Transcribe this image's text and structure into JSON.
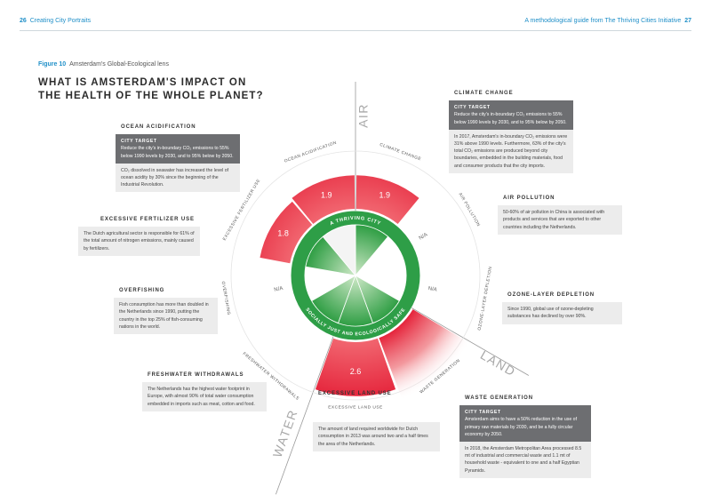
{
  "header": {
    "page_left": "26",
    "section": "Creating City Portraits",
    "guide": "A methodological guide from The Thriving Cities Initiative",
    "page_right": "27"
  },
  "figure": {
    "label": "Figure 10",
    "caption": "Amsterdam's Global-Ecological lens"
  },
  "title": [
    "WHAT IS AMSTERDAM'S IMPACT ON",
    "THE HEALTH OF THE WHOLE PLANET?"
  ],
  "diagram": {
    "ring_top": "A THRIVING CITY",
    "ring_bottom": "SOCIALLY JUST AND ECOLOGICALLY SAFE",
    "axes": [
      "AIR",
      "LAND",
      "WATER"
    ],
    "sectors": [
      {
        "label": "CLIMATE CHANGE",
        "value": 1.9
      },
      {
        "label": "AIR POLLUTION",
        "value_label": "N/A"
      },
      {
        "label": "OZONE-LAYER DEPLETION",
        "value_label": "N/A"
      },
      {
        "label": "WASTE GENERATION"
      },
      {
        "label": "EXCESSIVE LAND USE",
        "value": 2.6
      },
      {
        "label": "FRESHWATER WITHDRAWALS"
      },
      {
        "label": "OVERFISHING",
        "value_label": "N/A"
      },
      {
        "label": "EXCESSIVE FERTILIZER USE",
        "value": 1.8
      },
      {
        "label": "OCEAN ACIDIFICATION",
        "value": 1.9
      }
    ]
  },
  "panels": [
    {
      "title": "CLIMATE CHANGE",
      "target_heading": "CITY TARGET",
      "target": "Reduce the city's in-boundary CO₂ emissions to 55% below 1990 levels by 2030, and to 95% below by 2050.",
      "body": "In 2017, Amsterdam's in-boundary CO₂ emissions were 31% above 1990 levels. Furthermore, 63% of the city's total CO₂ emissions are produced beyond city boundaries, embedded in the building materials, food and consumer products that the city imports."
    },
    {
      "title": "OCEAN ACIDIFICATION",
      "target_heading": "CITY TARGET",
      "target": "Reduce the city's in-boundary CO₂ emissions to 55% below 1990 levels by 2030, and to 95% below by 2050.",
      "body": "CO₂ dissolved in seawater has increased the level of ocean acidity by 30% since the beginning of the Industrial Revolution."
    },
    {
      "title": "AIR POLLUTION",
      "body": "50-60% of air pollution in China is associated with products and services that are exported to other countries including the Netherlands."
    },
    {
      "title": "EXCESSIVE FERTILIZER USE",
      "body": "The Dutch agricultural sector is responsible for 61% of the total amount of nitrogen emissions, mainly caused by fertilizers."
    },
    {
      "title": "OZONE-LAYER DEPLETION",
      "body": "Since 1990, global use of ozone-depleting substances has declined by over 90%."
    },
    {
      "title": "OVERFISHING",
      "body": "Fish consumption has more than doubled in the Netherlands since 1990, putting the country in the top 25% of fish-consuming nations in the world."
    },
    {
      "title": "FRESHWATER WITHDRAWALS",
      "body": "The Netherlands has the highest water footprint in Europe, with almost 90% of total water consumption embedded in imports such as meat, cotton and food."
    },
    {
      "title": "EXCESSIVE LAND USE",
      "body": "The amount of land required worldwide for Dutch consumption in 2013 was around two and a half times the area of the Netherlands."
    },
    {
      "title": "WASTE GENERATION",
      "target_heading": "CITY TARGET",
      "target": "Amsterdam aims to have a 50% reduction in the use of primary raw materials by 2030, and be a fully circular economy by 2050.",
      "body": "In 2018, the Amsterdam Metropolitan Area processed 8.5 mt of industrial and commercial waste and 1.1 mt of household waste - equivalent to one and a half Egyptian Pyramids."
    }
  ]
}
